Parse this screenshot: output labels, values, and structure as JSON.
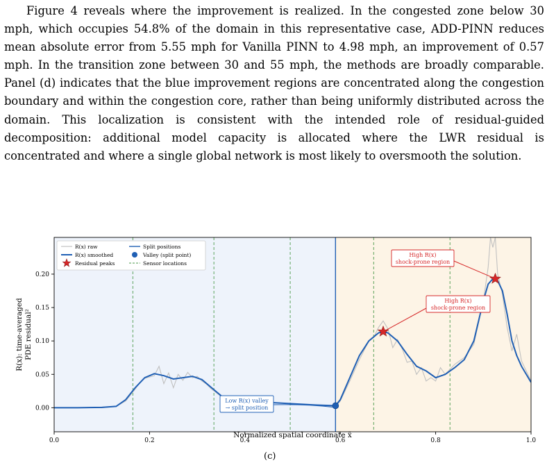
{
  "paragraph": "Figure 4 reveals where the improvement is realized. In the congested zone below 30 mph, which occupies 54.8% of the domain in this representa­tive case, ADD-PINN reduces mean absolute error from 5.55 mph for Vanilla PINN to 4.98 mph, an improvement of 0.57 mph. In the transition zone between 30 and 55 mph, the methods are broadly comparable. Panel (d) in­dicates that the blue improvement regions are concentrated along the conges­tion boundary and within the congestion core, rather than being uniformly distributed across the domain. This localization is consistent with the in­tended role of residual-guided decomposition: additional model capacity is allocated where the LWR residual is concentrated and where a single global network is most likely to oversmooth the solution.",
  "sub_caption": "(c)",
  "chart_data": {
    "type": "line",
    "xlabel": "Normalized spatial coordinate x̂",
    "ylabel_line1": "R(x): time-averaged",
    "ylabel_line2": "PDE residual²",
    "xlim": [
      0.0,
      1.0
    ],
    "ylim": [
      -0.036,
      0.255
    ],
    "xticks": [
      "0.0",
      "0.2",
      "0.4",
      "0.6",
      "0.8",
      "1.0"
    ],
    "yticks": [
      "0.00",
      "0.05",
      "0.10",
      "0.15",
      "0.20"
    ],
    "legend": {
      "position": "top-left",
      "raw": "R(x) raw",
      "smoothed": "R(x) smoothed",
      "peaks": "Residual peaks",
      "split": "Split positions",
      "valley": "Valley (split point)",
      "sensors": "Sensor locations"
    },
    "split_position": 0.59,
    "sensor_locations": [
      0.165,
      0.335,
      0.495,
      0.67,
      0.83
    ],
    "colors": {
      "smoothed": "#1f5fb4",
      "raw": "#c0c0c0",
      "peak": "#d62728",
      "sensor": "#4a9a4a",
      "region_left": "#eef3fb",
      "region_right": "#fdf4e6"
    },
    "smoothed": {
      "x": [
        0.0,
        0.05,
        0.1,
        0.13,
        0.15,
        0.17,
        0.19,
        0.21,
        0.23,
        0.25,
        0.27,
        0.29,
        0.31,
        0.33,
        0.35,
        0.37,
        0.4,
        0.45,
        0.5,
        0.55,
        0.59,
        0.6,
        0.62,
        0.64,
        0.66,
        0.68,
        0.69,
        0.7,
        0.72,
        0.74,
        0.76,
        0.78,
        0.8,
        0.82,
        0.84,
        0.86,
        0.88,
        0.9,
        0.91,
        0.92,
        0.93,
        0.94,
        0.95,
        0.96,
        0.97,
        0.98,
        1.0
      ],
      "y": [
        0.0,
        0.0,
        0.0005,
        0.002,
        0.012,
        0.03,
        0.045,
        0.051,
        0.048,
        0.043,
        0.045,
        0.047,
        0.042,
        0.03,
        0.018,
        0.012,
        0.009,
        0.008,
        0.006,
        0.004,
        0.003,
        0.012,
        0.045,
        0.078,
        0.1,
        0.112,
        0.114,
        0.112,
        0.1,
        0.08,
        0.062,
        0.055,
        0.045,
        0.05,
        0.06,
        0.072,
        0.1,
        0.16,
        0.185,
        0.193,
        0.19,
        0.175,
        0.14,
        0.1,
        0.078,
        0.062,
        0.038
      ]
    },
    "raw": {
      "x": [
        0.0,
        0.05,
        0.1,
        0.13,
        0.15,
        0.17,
        0.18,
        0.19,
        0.2,
        0.21,
        0.22,
        0.23,
        0.24,
        0.25,
        0.26,
        0.27,
        0.28,
        0.29,
        0.3,
        0.31,
        0.32,
        0.33,
        0.35,
        0.37,
        0.4,
        0.45,
        0.5,
        0.55,
        0.59,
        0.6,
        0.62,
        0.64,
        0.66,
        0.67,
        0.68,
        0.69,
        0.7,
        0.71,
        0.72,
        0.73,
        0.74,
        0.75,
        0.76,
        0.77,
        0.78,
        0.79,
        0.8,
        0.81,
        0.82,
        0.84,
        0.86,
        0.88,
        0.9,
        0.91,
        0.915,
        0.92,
        0.925,
        0.93,
        0.94,
        0.95,
        0.96,
        0.97,
        0.98,
        0.99,
        1.0
      ],
      "y": [
        0.0,
        0.0,
        0.0,
        0.002,
        0.01,
        0.028,
        0.038,
        0.044,
        0.046,
        0.048,
        0.062,
        0.036,
        0.052,
        0.03,
        0.05,
        0.041,
        0.053,
        0.045,
        0.047,
        0.04,
        0.035,
        0.028,
        0.017,
        0.011,
        0.009,
        0.008,
        0.006,
        0.004,
        0.002,
        0.01,
        0.04,
        0.072,
        0.1,
        0.105,
        0.12,
        0.13,
        0.118,
        0.09,
        0.102,
        0.088,
        0.068,
        0.07,
        0.05,
        0.06,
        0.04,
        0.045,
        0.04,
        0.06,
        0.05,
        0.065,
        0.075,
        0.095,
        0.16,
        0.21,
        0.255,
        0.24,
        0.255,
        0.2,
        0.17,
        0.12,
        0.085,
        0.11,
        0.07,
        0.055,
        0.04
      ]
    },
    "peaks": [
      {
        "x": 0.69,
        "y": 0.114
      },
      {
        "x": 0.925,
        "y": 0.193
      }
    ],
    "valley": {
      "x": 0.59,
      "y": 0.003
    },
    "annotations": {
      "high_top_line1": "High R(x)",
      "high_top_line2": "shock-prone region",
      "high_mid_line1": "High R(x)",
      "high_mid_line2": "shock-prone region",
      "valley_line1": "Low R(x) valley",
      "valley_line2": "→ split position"
    }
  }
}
